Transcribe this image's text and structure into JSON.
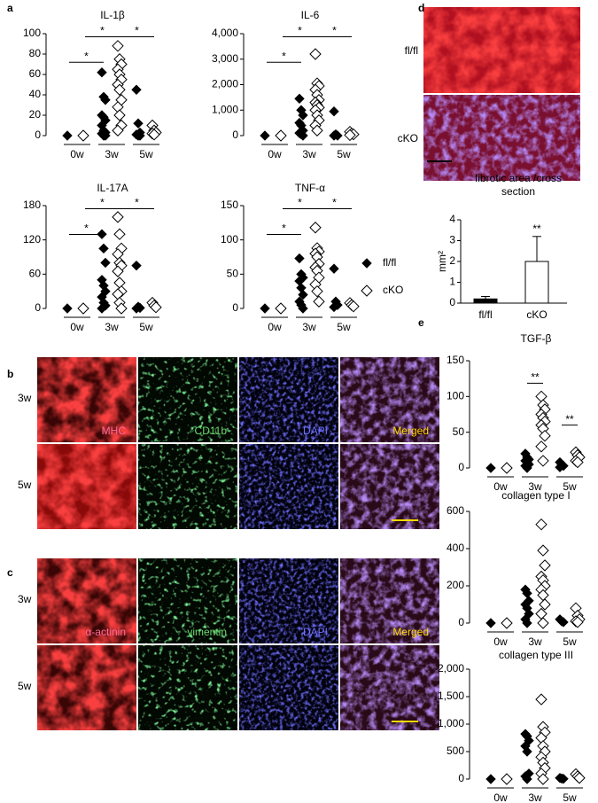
{
  "panels": [
    "a",
    "b",
    "c",
    "d",
    "e"
  ],
  "microscopy": {
    "b": {
      "stains": [
        "MHC",
        "CD11b",
        "DAPI",
        "Merged"
      ],
      "rows": [
        "3w",
        "5w"
      ]
    },
    "c": {
      "stains": [
        "α-actinin",
        "vimentin",
        "DAPI",
        "Merged"
      ],
      "rows": [
        "3w",
        "5w"
      ]
    },
    "d": {
      "rows": [
        "fl/fl",
        "cKO"
      ]
    }
  },
  "chart_data": [
    {
      "type": "dot",
      "title": "IL-1β",
      "categories": [
        "0w",
        "3w",
        "5w"
      ],
      "series": [
        {
          "name": "fl/fl",
          "color": "#000000",
          "filled": true,
          "values": [
            [
              0
            ],
            [
              62,
              38,
              35,
              20,
              18,
              15,
              10,
              5,
              3,
              2,
              0,
              0
            ],
            [
              45,
              12,
              3,
              1,
              0,
              0
            ]
          ]
        },
        {
          "name": "cKO",
          "color": "#000000",
          "filled": false,
          "values": [
            [
              0
            ],
            [
              88,
              75,
              70,
              65,
              60,
              55,
              50,
              45,
              35,
              28,
              20,
              10,
              5
            ],
            [
              10,
              5,
              3,
              2,
              1
            ]
          ]
        }
      ],
      "ylim": [
        0,
        100
      ],
      "yticks": [
        0,
        20,
        40,
        60,
        80,
        100
      ],
      "annotations": [
        "*",
        "*",
        "*"
      ]
    },
    {
      "type": "dot",
      "title": "IL-6",
      "categories": [
        "0w",
        "3w",
        "5w"
      ],
      "series": [
        {
          "name": "fl/fl",
          "color": "#000000",
          "filled": true,
          "values": [
            [
              0
            ],
            [
              1450,
              1000,
              800,
              500,
              400,
              200,
              100,
              50,
              0
            ],
            [
              950,
              50,
              0,
              0
            ]
          ]
        },
        {
          "name": "cKO",
          "color": "#000000",
          "filled": false,
          "values": [
            [
              0
            ],
            [
              3200,
              2050,
              1950,
              1800,
              1600,
              1400,
              1300,
              1200,
              1100,
              1000,
              800,
              600,
              400,
              200
            ],
            [
              150,
              80,
              50,
              20
            ]
          ]
        }
      ],
      "ylim": [
        0,
        4000
      ],
      "yticks": [
        0,
        {
          "value": 1000,
          "label": "1,000"
        },
        {
          "value": 2000,
          "label": "2,000"
        },
        {
          "value": 3000,
          "label": "3,000"
        },
        {
          "value": 4000,
          "label": "4,000"
        }
      ],
      "annotations": [
        "*",
        "*",
        "*"
      ]
    },
    {
      "type": "dot",
      "title": "IL-17A",
      "categories": [
        "0w",
        "3w",
        "5w"
      ],
      "series": [
        {
          "name": "fl/fl",
          "color": "#000000",
          "filled": true,
          "values": [
            [
              0
            ],
            [
              130,
              105,
              80,
              50,
              40,
              30,
              20,
              10,
              5,
              0
            ],
            [
              75,
              3,
              1,
              0
            ]
          ]
        },
        {
          "name": "cKO",
          "color": "#000000",
          "filled": false,
          "values": [
            [
              0
            ],
            [
              160,
              130,
              105,
              95,
              80,
              75,
              65,
              45,
              30,
              25,
              10,
              0
            ],
            [
              10,
              5,
              2
            ]
          ]
        }
      ],
      "ylim": [
        0,
        180
      ],
      "yticks": [
        0,
        60,
        120,
        180
      ],
      "annotations": [
        "*",
        "*",
        "*"
      ]
    },
    {
      "type": "dot",
      "title": "TNF-α",
      "categories": [
        "0w",
        "3w",
        "5w"
      ],
      "series": [
        {
          "name": "fl/fl",
          "color": "#000000",
          "filled": true,
          "values": [
            [
              0
            ],
            [
              73,
              50,
              45,
              40,
              30,
              20,
              10,
              5,
              0
            ],
            [
              58,
              10,
              5,
              2
            ]
          ]
        },
        {
          "name": "cKO",
          "color": "#000000",
          "filled": false,
          "values": [
            [
              0
            ],
            [
              118,
              88,
              83,
              80,
              75,
              65,
              60,
              55,
              45,
              35,
              25,
              10
            ],
            [
              8,
              5,
              3
            ]
          ]
        }
      ],
      "ylim": [
        0,
        150
      ],
      "yticks": [
        0,
        50,
        100,
        150
      ],
      "annotations": [
        "*",
        "*",
        "*"
      ]
    },
    {
      "type": "dot",
      "title": "TGF-β",
      "categories": [
        "0w",
        "3w",
        "5w"
      ],
      "series": [
        {
          "name": "fl/fl",
          "color": "#000000",
          "filled": true,
          "values": [
            [
              0
            ],
            [
              20,
              15,
              12,
              10,
              8,
              5,
              3,
              0
            ],
            [
              8,
              5,
              3,
              1
            ]
          ]
        },
        {
          "name": "cKO",
          "color": "#000000",
          "filled": false,
          "values": [
            [
              0
            ],
            [
              100,
              88,
              82,
              75,
              70,
              65,
              60,
              55,
              45,
              30,
              10
            ],
            [
              22,
              18,
              15,
              10,
              8
            ]
          ]
        }
      ],
      "ylim": [
        0,
        150
      ],
      "yticks": [
        0,
        50,
        100,
        150
      ],
      "annotations": [
        "**",
        "**"
      ]
    },
    {
      "type": "dot",
      "title": "collagen type I",
      "categories": [
        "0w",
        "3w",
        "5w"
      ],
      "series": [
        {
          "name": "fl/fl",
          "color": "#000000",
          "filled": true,
          "values": [
            [
              0
            ],
            [
              180,
              160,
              120,
              100,
              80,
              50,
              20,
              0
            ],
            [
              20,
              10,
              5
            ]
          ]
        },
        {
          "name": "cKO",
          "color": "#000000",
          "filled": false,
          "values": [
            [
              0
            ],
            [
              530,
              390,
              310,
              250,
              230,
              200,
              180,
              150,
              100,
              50,
              0
            ],
            [
              80,
              40,
              20,
              10,
              5
            ]
          ]
        }
      ],
      "ylim": [
        0,
        600
      ],
      "yticks": [
        0,
        200,
        400,
        600
      ],
      "annotations": []
    },
    {
      "type": "dot",
      "title": "collagen type III",
      "categories": [
        "0w",
        "3w",
        "5w"
      ],
      "series": [
        {
          "name": "fl/fl",
          "color": "#000000",
          "filled": true,
          "values": [
            [
              0
            ],
            [
              820,
              780,
              700,
              600,
              500,
              100,
              50,
              0
            ],
            [
              20,
              10,
              5
            ]
          ]
        },
        {
          "name": "cKO",
          "color": "#000000",
          "filled": false,
          "values": [
            [
              0
            ],
            [
              1450,
              950,
              850,
              750,
              600,
              500,
              400,
              300,
              200,
              100,
              0
            ],
            [
              90,
              50,
              20
            ]
          ]
        }
      ],
      "ylim": [
        0,
        2000
      ],
      "yticks": [
        0,
        500,
        {
          "value": 1000,
          "label": "1,000"
        },
        {
          "value": 1500,
          "label": "1,500"
        },
        {
          "value": 2000,
          "label": "2,000"
        }
      ],
      "annotations": []
    },
    {
      "type": "bar",
      "title": "fibrotic area /cross section",
      "ylabel": "mm²",
      "categories": [
        "fl/fl",
        "cKO"
      ],
      "values": [
        0.2,
        2.0
      ],
      "errors": [
        0.12,
        1.2
      ],
      "colors": [
        "#000000",
        "#ffffff"
      ],
      "ylim": [
        0,
        4
      ],
      "yticks": [
        0,
        1,
        2,
        3,
        4
      ],
      "annotations": [
        "**"
      ]
    }
  ]
}
